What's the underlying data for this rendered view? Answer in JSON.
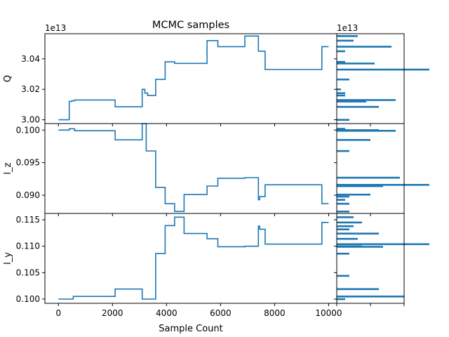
{
  "chart_data": {
    "type": "line",
    "title": "MCMC samples",
    "xlabel": "Sample Count",
    "xlim": [
      -500,
      10300
    ],
    "xticks": [
      0,
      2000,
      4000,
      6000,
      8000,
      10000
    ],
    "xtick_labels": [
      "0",
      "2000",
      "4000",
      "6000",
      "8000",
      "10000"
    ],
    "line_color": "#1f77b4",
    "panels": [
      {
        "ylabel": "Q",
        "offset_label": "1e13",
        "scale": 10000000000000.0,
        "ylim": [
          2.9975,
          3.0565
        ],
        "yticks": [
          3.0,
          3.02,
          3.04
        ],
        "ytick_labels": [
          "3.00",
          "3.02",
          "3.04"
        ],
        "trace_x": [
          0,
          400,
          500,
          600,
          2100,
          3100,
          3200,
          3300,
          3600,
          3950,
          4300,
          4650,
          5500,
          5900,
          6900,
          7400,
          7650,
          9750
        ],
        "trace_y": [
          3.0,
          3.012,
          3.0125,
          3.013,
          3.0085,
          3.02,
          3.0175,
          3.016,
          3.0265,
          3.038,
          3.037,
          3.037,
          3.052,
          3.048,
          3.055,
          3.045,
          3.033,
          3.048
        ],
        "trace_end_x": 10000,
        "hist_xlim": [
          0,
          16
        ],
        "hist": [
          {
            "y": 3.0,
            "count": 3
          },
          {
            "y": 3.012,
            "count": 7
          },
          {
            "y": 3.013,
            "count": 14
          },
          {
            "y": 3.016,
            "count": 2
          },
          {
            "y": 3.0175,
            "count": 2
          },
          {
            "y": 3.02,
            "count": 1
          },
          {
            "y": 3.0085,
            "count": 10
          },
          {
            "y": 3.0265,
            "count": 3
          },
          {
            "y": 3.033,
            "count": 22
          },
          {
            "y": 3.037,
            "count": 9
          },
          {
            "y": 3.038,
            "count": 2
          },
          {
            "y": 3.045,
            "count": 2
          },
          {
            "y": 3.048,
            "count": 13
          },
          {
            "y": 3.052,
            "count": 4
          },
          {
            "y": 3.055,
            "count": 5
          }
        ]
      },
      {
        "ylabel": "l_z",
        "offset_label": "",
        "scale": 1,
        "ylim": [
          0.0872,
          0.101
        ],
        "yticks": [
          0.09,
          0.095,
          0.1
        ],
        "ytick_labels": [
          "0.090",
          "0.095",
          "0.100"
        ],
        "trace_x": [
          0,
          400,
          600,
          2100,
          3100,
          3250,
          3600,
          3950,
          4300,
          4650,
          5500,
          5900,
          6900,
          7400,
          7450,
          7650,
          9750
        ],
        "trace_y": [
          0.1,
          0.1002,
          0.0999,
          0.0985,
          0.101,
          0.0968,
          0.0912,
          0.0887,
          0.0875,
          0.0901,
          0.0914,
          0.0926,
          0.0927,
          0.0893,
          0.0898,
          0.0916,
          0.0887
        ],
        "trace_end_x": 10000,
        "hist_xlim": [
          0,
          16
        ],
        "hist": [
          {
            "y": 0.1,
            "count": 10
          },
          {
            "y": 0.1002,
            "count": 2
          },
          {
            "y": 0.0999,
            "count": 14
          },
          {
            "y": 0.0985,
            "count": 8
          },
          {
            "y": 0.0968,
            "count": 3
          },
          {
            "y": 0.0927,
            "count": 15
          },
          {
            "y": 0.0916,
            "count": 22
          },
          {
            "y": 0.0914,
            "count": 11
          },
          {
            "y": 0.0901,
            "count": 8
          },
          {
            "y": 0.0898,
            "count": 3
          },
          {
            "y": 0.0893,
            "count": 2
          },
          {
            "y": 0.0887,
            "count": 3
          },
          {
            "y": 0.0875,
            "count": 3
          }
        ]
      },
      {
        "ylabel": "l_y",
        "offset_label": "",
        "scale": 1,
        "ylim": [
          0.0992,
          0.1162
        ],
        "yticks": [
          0.1,
          0.105,
          0.11,
          0.115
        ],
        "ytick_labels": [
          "0.100",
          "0.105",
          "0.110",
          "0.115"
        ],
        "trace_x": [
          0,
          550,
          2100,
          3100,
          3600,
          3950,
          4300,
          4650,
          5500,
          5900,
          6900,
          7400,
          7450,
          7650,
          9750
        ],
        "trace_y": [
          0.1,
          0.1005,
          0.1019,
          0.1,
          0.1086,
          0.1139,
          0.1155,
          0.1124,
          0.1114,
          0.1099,
          0.11,
          0.1138,
          0.1132,
          0.1104,
          0.1145
        ],
        "trace_end_x": 10000,
        "hist_xlim": [
          0,
          16
        ],
        "hist": [
          {
            "y": 0.1,
            "count": 2
          },
          {
            "y": 0.1005,
            "count": 16
          },
          {
            "y": 0.1019,
            "count": 10
          },
          {
            "y": 0.1044,
            "count": 3
          },
          {
            "y": 0.1086,
            "count": 3
          },
          {
            "y": 0.1099,
            "count": 11
          },
          {
            "y": 0.11,
            "count": 6
          },
          {
            "y": 0.1104,
            "count": 22
          },
          {
            "y": 0.1114,
            "count": 5
          },
          {
            "y": 0.1124,
            "count": 10
          },
          {
            "y": 0.1132,
            "count": 3
          },
          {
            "y": 0.1138,
            "count": 4
          },
          {
            "y": 0.1145,
            "count": 6
          },
          {
            "y": 0.1155,
            "count": 4
          }
        ]
      }
    ]
  }
}
